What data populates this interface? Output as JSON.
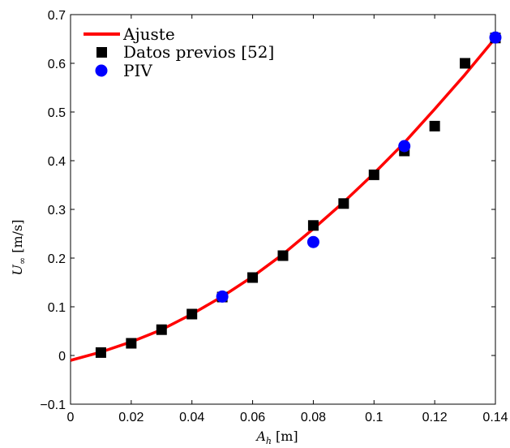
{
  "chart_data": {
    "type": "scatter",
    "xlim": [
      0,
      0.14
    ],
    "ylim": [
      -0.1,
      0.7
    ],
    "xticks": [
      0,
      0.02,
      0.04,
      0.06,
      0.08,
      0.1,
      0.12,
      0.14
    ],
    "xtick_labels": [
      "0",
      "0.02",
      "0.04",
      "0.06",
      "0.08",
      "0.1",
      "0.12",
      "0.14"
    ],
    "yticks": [
      -0.1,
      0,
      0.1,
      0.2,
      0.3,
      0.4,
      0.5,
      0.6,
      0.7
    ],
    "ytick_labels": [
      "−0.1",
      "0",
      "0.1",
      "0.2",
      "0.3",
      "0.4",
      "0.5",
      "0.6",
      "0.7"
    ],
    "xlabel": {
      "main": "A",
      "sub": "h",
      "unit": "[m]"
    },
    "ylabel": {
      "main": "U",
      "sub": "∞",
      "unit": "[m/s]"
    },
    "grid": false,
    "legend_position": "top-left",
    "series": [
      {
        "name": "Ajuste",
        "type": "line",
        "color": "#ff0000",
        "x": [
          0,
          0.01,
          0.02,
          0.03,
          0.04,
          0.05,
          0.06,
          0.07,
          0.08,
          0.09,
          0.1,
          0.11,
          0.12,
          0.13,
          0.14
        ],
        "y": [
          -0.01,
          0.007,
          0.028,
          0.053,
          0.085,
          0.121,
          0.162,
          0.208,
          0.26,
          0.315,
          0.374,
          0.437,
          0.506,
          0.577,
          0.652
        ]
      },
      {
        "name": "Datos previos [52]",
        "type": "scatter",
        "marker": "square",
        "color": "#000000",
        "x": [
          0.01,
          0.02,
          0.03,
          0.04,
          0.05,
          0.06,
          0.07,
          0.08,
          0.09,
          0.1,
          0.11,
          0.12,
          0.13,
          0.14
        ],
        "y": [
          0.006,
          0.025,
          0.053,
          0.085,
          0.12,
          0.16,
          0.205,
          0.267,
          0.312,
          0.371,
          0.42,
          0.471,
          0.6,
          0.652
        ]
      },
      {
        "name": "PIV",
        "type": "scatter",
        "marker": "circle",
        "color": "#0000ff",
        "x": [
          0.05,
          0.08,
          0.11,
          0.14
        ],
        "y": [
          0.121,
          0.233,
          0.43,
          0.653
        ]
      }
    ]
  }
}
